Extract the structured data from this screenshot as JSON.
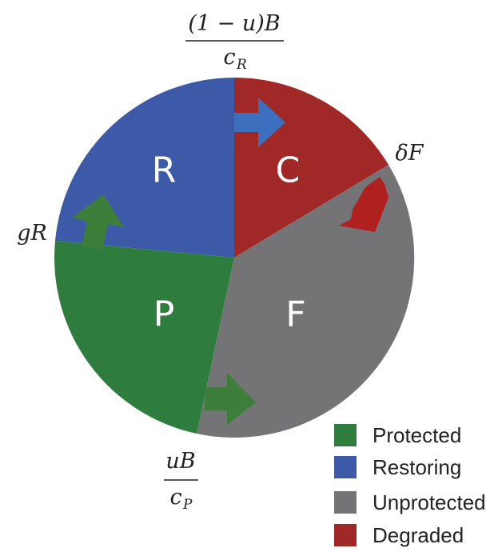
{
  "segments": {
    "restoring": {
      "letter": "R"
    },
    "degraded": {
      "letter": "C"
    },
    "unprotected": {
      "letter": "F"
    },
    "protected": {
      "letter": "P"
    }
  },
  "flows": {
    "restoration_rate": {
      "numerator": "(1 − u)B",
      "denominator": "c",
      "denominator_sub": "R"
    },
    "protection_rate": {
      "numerator": "uB",
      "denominator": "c",
      "denominator_sub": "P"
    },
    "growth_rate": {
      "label": "gR"
    },
    "degradation_rate": {
      "label": "δF"
    }
  },
  "legend": [
    {
      "label": "Protected",
      "color": "#2e7d3e"
    },
    {
      "label": "Restoring",
      "color": "#3c5aa8"
    },
    {
      "label": "Unprotected",
      "color": "#747476"
    },
    {
      "label": "Degraded",
      "color": "#a02826"
    }
  ],
  "colors": {
    "protected": "#2e7d3e",
    "restoring": "#3c5aa8",
    "unprotected": "#747476",
    "degraded": "#a02826",
    "arrow_blue": "#3c6fbd",
    "arrow_green": "#3d7f3a",
    "arrow_red": "#b0201f"
  }
}
